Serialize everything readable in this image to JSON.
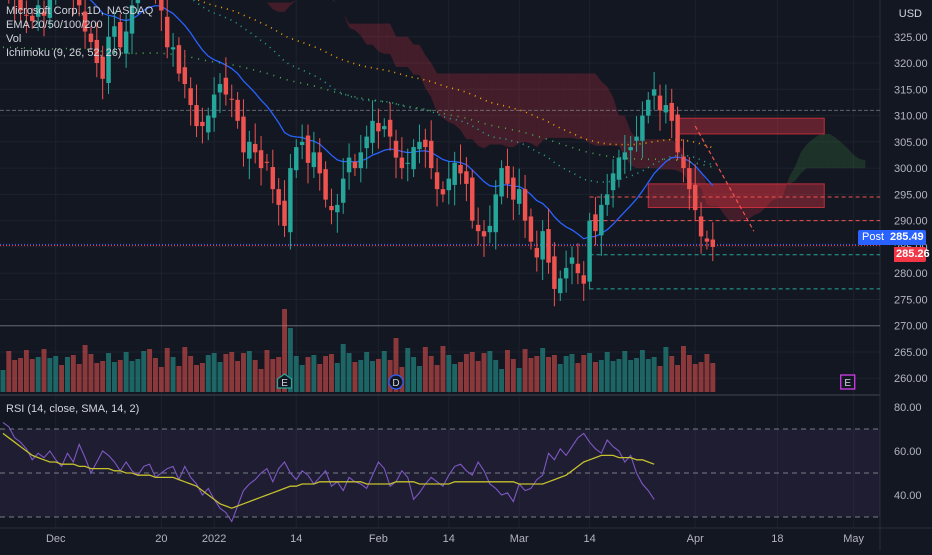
{
  "legend": {
    "title": "Microsoft Corp., 1D, NASDAQ",
    "ema": "EMA 20/50/100/200",
    "vol": "Vol",
    "ichimoku": "Ichimoku (9, 26, 52, 26)"
  },
  "rsi": {
    "label": "RSI (14, close, SMA, 14, 2)",
    "ticks": [
      80,
      60,
      40
    ],
    "bands": [
      70,
      50,
      30
    ],
    "range": [
      25,
      85
    ],
    "values": [
      73,
      71,
      66,
      64,
      61,
      56,
      59,
      57,
      60,
      56,
      53,
      59,
      55,
      63,
      57,
      50,
      55,
      60,
      58,
      55,
      51,
      55,
      51,
      49,
      53,
      54,
      48,
      50,
      52,
      53,
      47,
      53,
      48,
      45,
      40,
      43,
      38,
      34,
      32,
      28,
      35,
      42,
      45,
      47,
      50,
      52,
      46,
      52,
      55,
      50,
      47,
      51,
      49,
      45,
      48,
      51,
      44,
      46,
      42,
      48,
      46,
      45,
      43,
      49,
      55,
      52,
      44,
      46,
      51,
      48,
      38,
      41,
      45,
      48,
      46,
      44,
      49,
      53,
      54,
      51,
      49,
      55,
      51,
      45,
      43,
      40,
      41,
      37,
      45,
      42,
      43,
      47,
      49,
      59,
      56,
      61,
      58,
      62,
      66,
      68,
      64,
      61,
      59,
      65,
      62,
      60,
      55,
      58,
      50,
      45,
      42,
      38
    ],
    "sma": [
      68,
      66,
      64,
      62,
      60,
      58,
      57,
      56,
      55,
      55,
      54,
      54,
      54,
      53,
      53,
      52,
      52,
      52,
      52,
      51,
      51,
      50,
      50,
      49,
      49,
      49,
      48,
      48,
      48,
      48,
      47,
      46,
      45,
      44,
      42,
      40,
      38,
      36,
      35,
      34,
      35,
      36,
      37,
      38,
      39,
      40,
      41,
      42,
      43,
      44,
      44,
      45,
      45,
      45,
      46,
      46,
      46,
      46,
      46,
      46,
      46,
      46,
      45,
      45,
      45,
      45,
      45,
      46,
      46,
      46,
      46,
      45,
      45,
      45,
      45,
      45,
      45,
      46,
      46,
      46,
      46,
      46,
      46,
      46,
      46,
      46,
      46,
      46,
      45,
      45,
      45,
      45,
      45,
      46,
      47,
      48,
      49,
      51,
      53,
      55,
      56,
      57,
      58,
      58,
      58,
      57,
      57,
      57,
      56,
      56,
      55,
      54
    ]
  },
  "axis": {
    "currency": "USD",
    "price_ticks": [
      325,
      320,
      315,
      310,
      305,
      300,
      295,
      290,
      285,
      280,
      275,
      270,
      265,
      260
    ],
    "price_range": [
      257,
      332
    ],
    "x_labels": [
      {
        "label": "Dec",
        "bar": 9
      },
      {
        "label": "20",
        "bar": 27
      },
      {
        "label": "2022",
        "bar": 36
      },
      {
        "label": "14",
        "bar": 50
      },
      {
        "label": "Feb",
        "bar": 64
      },
      {
        "label": "14",
        "bar": 76
      },
      {
        "label": "Mar",
        "bar": 88
      },
      {
        "label": "14",
        "bar": 100
      },
      {
        "label": "Apr",
        "bar": 118
      },
      {
        "label": "18",
        "bar": 132
      },
      {
        "label": "May",
        "bar": 145
      }
    ]
  },
  "price": {
    "post_label": "Post",
    "post_value": "285.49",
    "last_value": "285.26",
    "last": 285.26,
    "post": 285.49
  },
  "colors": {
    "up": "#26a69a",
    "down": "#ef5350",
    "ema": "#2962ff",
    "rsi": "#7e57c2",
    "rsi_sma": "#c5c02d",
    "post": "#2962ff",
    "last": "#f23645"
  },
  "chart_data": {
    "type": "candlestick",
    "title": "Microsoft Corp., 1D, NASDAQ",
    "currency": "USD",
    "ylim": [
      257,
      332
    ],
    "grid": true,
    "close": [
      335,
      334,
      332,
      330,
      329,
      328,
      331,
      329,
      334,
      336,
      337,
      338,
      333,
      331,
      326,
      324,
      320,
      317,
      325,
      327,
      323,
      326,
      331,
      336,
      339,
      336,
      334,
      330,
      323,
      323,
      318,
      316,
      312,
      308,
      308,
      310,
      314,
      316,
      314,
      313,
      309,
      303,
      305,
      303,
      300,
      301,
      296,
      293,
      289,
      300,
      304,
      305,
      301,
      303,
      299,
      294,
      292,
      293,
      298,
      302,
      300,
      303,
      306,
      309,
      307,
      308,
      306,
      302,
      300,
      301,
      304,
      305,
      304,
      300,
      296,
      295,
      298,
      301,
      299,
      297,
      290,
      288,
      287,
      289,
      295,
      300,
      297,
      294,
      296,
      290,
      286,
      283,
      288,
      282,
      277,
      279,
      281,
      283,
      280,
      278,
      290,
      288,
      293,
      295,
      299,
      302,
      303,
      304,
      306,
      310,
      313,
      315,
      311,
      312,
      309,
      303,
      300,
      296,
      292,
      287,
      286,
      285
    ]
  },
  "events": [
    {
      "label": "E",
      "bar": 48,
      "type": "earnings"
    },
    {
      "label": "D",
      "bar": 67,
      "type": "dividend"
    },
    {
      "label": "E",
      "bar": 144,
      "type": "earnings"
    }
  ]
}
